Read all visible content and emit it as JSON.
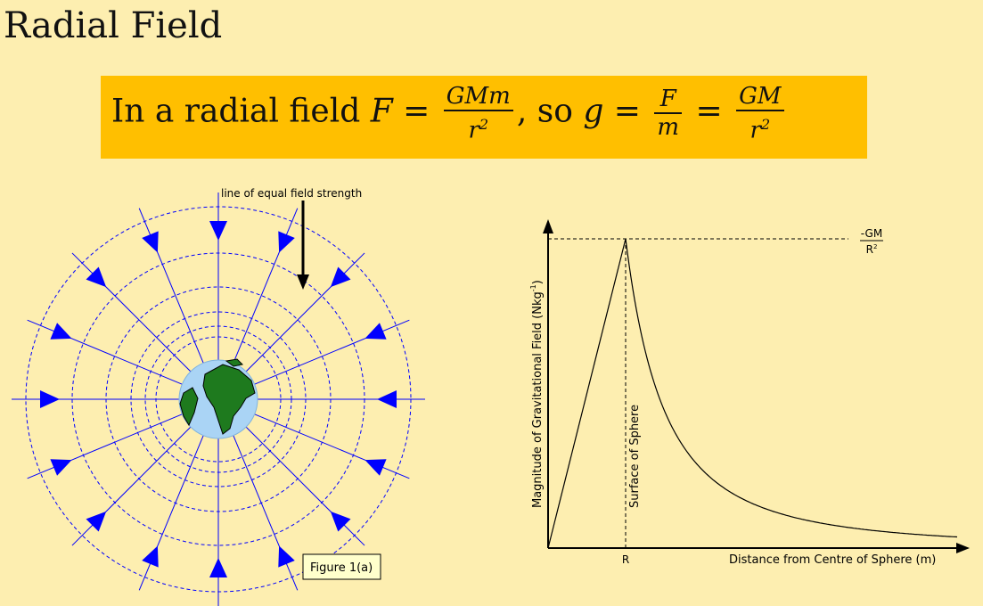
{
  "title": "Radial Field",
  "formula": {
    "prefix": "In a radial field ",
    "F": "F",
    "eq": " = ",
    "num1": "GMm",
    "den1": "r",
    "den1_exp": "2",
    "mid": ", so ",
    "g": "g",
    "eq2": " = ",
    "num2": "F",
    "den2": "m",
    "eq3": " = ",
    "num3": "GM",
    "den3": "r",
    "den3_exp": "2"
  },
  "figure_left": {
    "annotation": "line of equal field strength",
    "caption": "Figure 1(a)"
  },
  "figure_right": {
    "y_axis_label": "Magnitude of Gravitational Field (Nkg",
    "y_axis_label_exp": "-1",
    "y_axis_label_end": ")",
    "x_axis_label": "Distance from Centre of Sphere (m)",
    "surface_label": "Surface of Sphere",
    "r_tick": "R",
    "peak_num": "-GM",
    "peak_den": "R",
    "peak_den_exp": "2"
  },
  "colors": {
    "background": "#fdeeb0",
    "formula_box": "#ffbf00",
    "field_lines": "#0000ff",
    "earth_ocean": "#aad4f5",
    "earth_land": "#1e7a1e",
    "caption_bg": "#ffffcc"
  }
}
